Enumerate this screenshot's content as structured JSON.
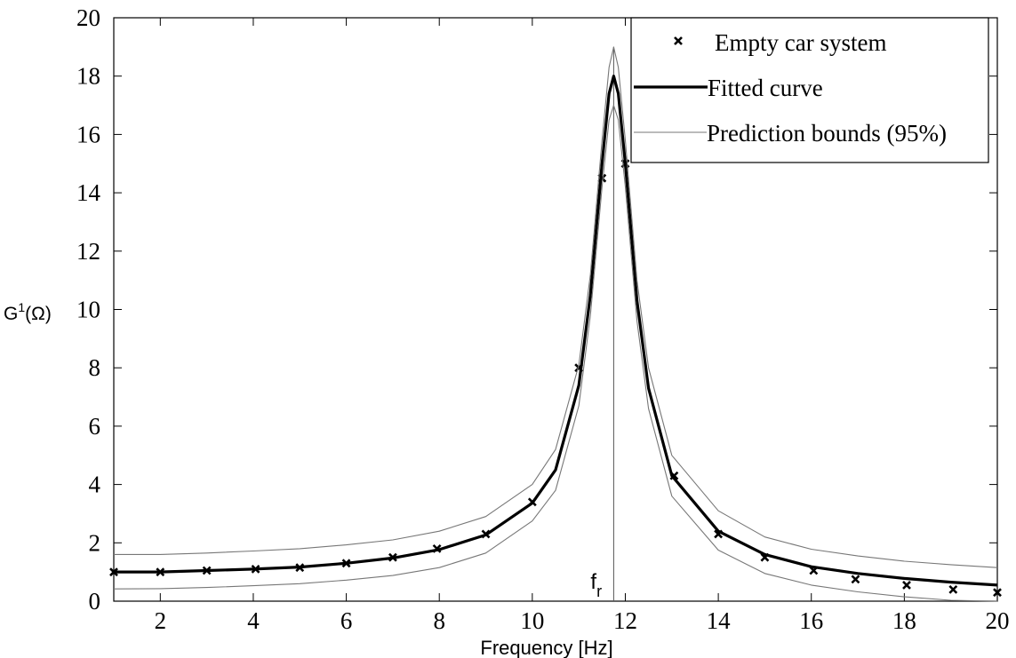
{
  "chart_data": {
    "type": "line",
    "xlabel": "Frequency [Hz]",
    "ylabel_base": "G",
    "ylabel_sup": "1",
    "ylabel_rest": "(Ω)",
    "xlim": [
      1,
      20
    ],
    "ylim": [
      0,
      20
    ],
    "xticks": [
      2,
      4,
      6,
      8,
      10,
      12,
      14,
      16,
      18,
      20
    ],
    "yticks": [
      0,
      2,
      4,
      6,
      8,
      10,
      12,
      14,
      16,
      18,
      20
    ],
    "grid": false,
    "legend_position": "top-right",
    "resonance": {
      "x": 11.75,
      "label_base": "f",
      "label_sub": "r"
    },
    "series": [
      {
        "name": "Empty car system",
        "style": "markers-x",
        "x": [
          1,
          2,
          3,
          4.05,
          5,
          6,
          7,
          7.95,
          9,
          10,
          11,
          11.5,
          12,
          13.05,
          14,
          15,
          16.05,
          16.95,
          18.05,
          19.05,
          20
        ],
        "y": [
          1.0,
          1.0,
          1.05,
          1.1,
          1.15,
          1.3,
          1.5,
          1.8,
          2.3,
          3.4,
          8.0,
          14.5,
          15.0,
          4.3,
          2.3,
          1.5,
          1.05,
          0.75,
          0.55,
          0.4,
          0.3
        ]
      },
      {
        "name": "Fitted curve",
        "style": "line-thick",
        "x": [
          1,
          2,
          3,
          4,
          5,
          6,
          7,
          8,
          9,
          10,
          10.5,
          11,
          11.25,
          11.5,
          11.65,
          11.75,
          11.85,
          12,
          12.25,
          12.5,
          13,
          14,
          15,
          16,
          17,
          18,
          19,
          20
        ],
        "y": [
          1.0,
          1.0,
          1.05,
          1.1,
          1.17,
          1.3,
          1.48,
          1.77,
          2.27,
          3.36,
          4.5,
          7.4,
          10.5,
          15.0,
          17.4,
          18.0,
          17.4,
          15.0,
          10.3,
          7.3,
          4.3,
          2.4,
          1.6,
          1.18,
          0.95,
          0.78,
          0.65,
          0.55
        ]
      },
      {
        "name": "Prediction bounds (95%)",
        "style": "line-thin",
        "x": [
          1,
          2,
          3,
          4,
          5,
          6,
          7,
          8,
          9,
          10,
          10.5,
          11,
          11.25,
          11.5,
          11.65,
          11.75,
          11.85,
          12,
          12.25,
          12.5,
          13,
          14,
          15,
          16,
          17,
          18,
          19,
          20
        ],
        "y": [
          1.6,
          1.6,
          1.65,
          1.72,
          1.8,
          1.93,
          2.1,
          2.4,
          2.9,
          4.0,
          5.2,
          8.1,
          11.2,
          15.8,
          18.3,
          19.0,
          18.3,
          15.8,
          11.0,
          8.0,
          5.0,
          3.1,
          2.2,
          1.78,
          1.55,
          1.37,
          1.25,
          1.15
        ]
      },
      {
        "name": "",
        "style": "line-thin",
        "x": [
          1,
          2,
          3,
          4,
          5,
          6,
          7,
          8,
          9,
          10,
          10.5,
          11,
          11.25,
          11.5,
          11.65,
          11.75,
          11.85,
          12,
          12.25,
          12.5,
          13,
          14,
          15,
          16,
          17,
          18,
          19,
          20
        ],
        "y": [
          0.42,
          0.43,
          0.47,
          0.53,
          0.6,
          0.72,
          0.88,
          1.15,
          1.65,
          2.75,
          3.8,
          6.7,
          9.8,
          14.2,
          16.5,
          17.0,
          16.5,
          14.2,
          9.6,
          6.6,
          3.6,
          1.75,
          0.95,
          0.55,
          0.32,
          0.15,
          0.03,
          0.0
        ]
      }
    ]
  }
}
